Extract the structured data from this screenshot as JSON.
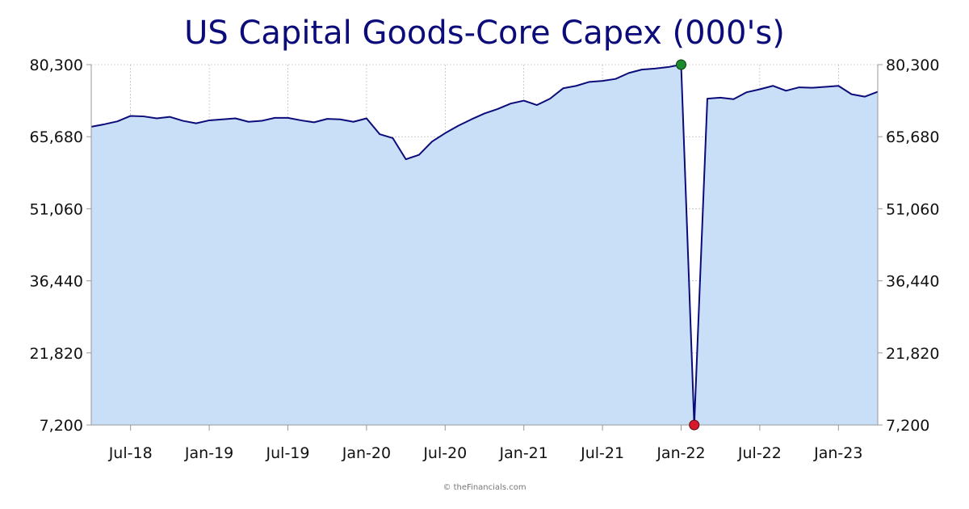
{
  "chart_data": {
    "type": "area",
    "title": "US Capital Goods-Core Capex (000's)",
    "credit": "© theFinancials.com",
    "ylim": [
      7200,
      80300
    ],
    "y_ticks": [
      7200,
      21820,
      36440,
      51060,
      65680,
      80300
    ],
    "y_tick_labels": [
      "7,200",
      "21,820",
      "36,440",
      "51,060",
      "65,680",
      "80,300"
    ],
    "x_ticks": [
      {
        "date": "2018-07",
        "label": "Jul-18"
      },
      {
        "date": "2019-01",
        "label": "Jan-19"
      },
      {
        "date": "2019-07",
        "label": "Jul-19"
      },
      {
        "date": "2020-01",
        "label": "Jan-20"
      },
      {
        "date": "2020-07",
        "label": "Jul-20"
      },
      {
        "date": "2021-01",
        "label": "Jan-21"
      },
      {
        "date": "2021-07",
        "label": "Jul-21"
      },
      {
        "date": "2022-01",
        "label": "Jan-22"
      },
      {
        "date": "2022-07",
        "label": "Jul-22"
      },
      {
        "date": "2023-01",
        "label": "Jan-23"
      }
    ],
    "x_start": "2018-04",
    "x_end": "2023-04",
    "grid": true,
    "colors": {
      "line": "#0b0b7a",
      "fill": "#c9dff7",
      "max_marker": "#1a8a2a",
      "min_marker": "#d8182c",
      "grid": "#aaaaaa",
      "axis": "#999999",
      "title": "#0b0b7a"
    },
    "series": [
      {
        "x": [
          "2018-04",
          "2018-05",
          "2018-06",
          "2018-07",
          "2018-08",
          "2018-09",
          "2018-10",
          "2018-11",
          "2018-12",
          "2019-01",
          "2019-02",
          "2019-03",
          "2019-04",
          "2019-05",
          "2019-06",
          "2019-07",
          "2019-08",
          "2019-09",
          "2019-10",
          "2019-11",
          "2019-12",
          "2020-01",
          "2020-02",
          "2020-03",
          "2020-04",
          "2020-05",
          "2020-06",
          "2020-07",
          "2020-08",
          "2020-09",
          "2020-10",
          "2020-11",
          "2020-12",
          "2021-01",
          "2021-02",
          "2021-03",
          "2021-04",
          "2021-05",
          "2021-06",
          "2021-07",
          "2021-08",
          "2021-09",
          "2021-10",
          "2021-11",
          "2021-12",
          "2022-01",
          "2022-02",
          "2022-03",
          "2022-04",
          "2022-05",
          "2022-06",
          "2022-07",
          "2022-08",
          "2022-09",
          "2022-10",
          "2022-11",
          "2022-12",
          "2023-01",
          "2023-02",
          "2023-03",
          "2023-04"
        ],
        "values": [
          67700,
          68200,
          68800,
          69900,
          69800,
          69400,
          69700,
          68900,
          68400,
          69000,
          69200,
          69400,
          68700,
          68900,
          69500,
          69500,
          69000,
          68600,
          69300,
          69200,
          68700,
          69400,
          66200,
          65400,
          61100,
          62000,
          64700,
          66400,
          67900,
          69200,
          70400,
          71300,
          72400,
          73000,
          72100,
          73400,
          75500,
          76000,
          76800,
          77000,
          77400,
          78600,
          79300,
          79500,
          79800,
          80300,
          7200,
          73400,
          73600,
          73300,
          74700,
          75300,
          76000,
          75000,
          75700,
          75600,
          75800,
          76000,
          74300,
          73800,
          74800
        ]
      }
    ],
    "max_point": {
      "date": "2022-01",
      "value": 80300
    },
    "min_point": {
      "date": "2022-02",
      "value": 7200
    }
  }
}
